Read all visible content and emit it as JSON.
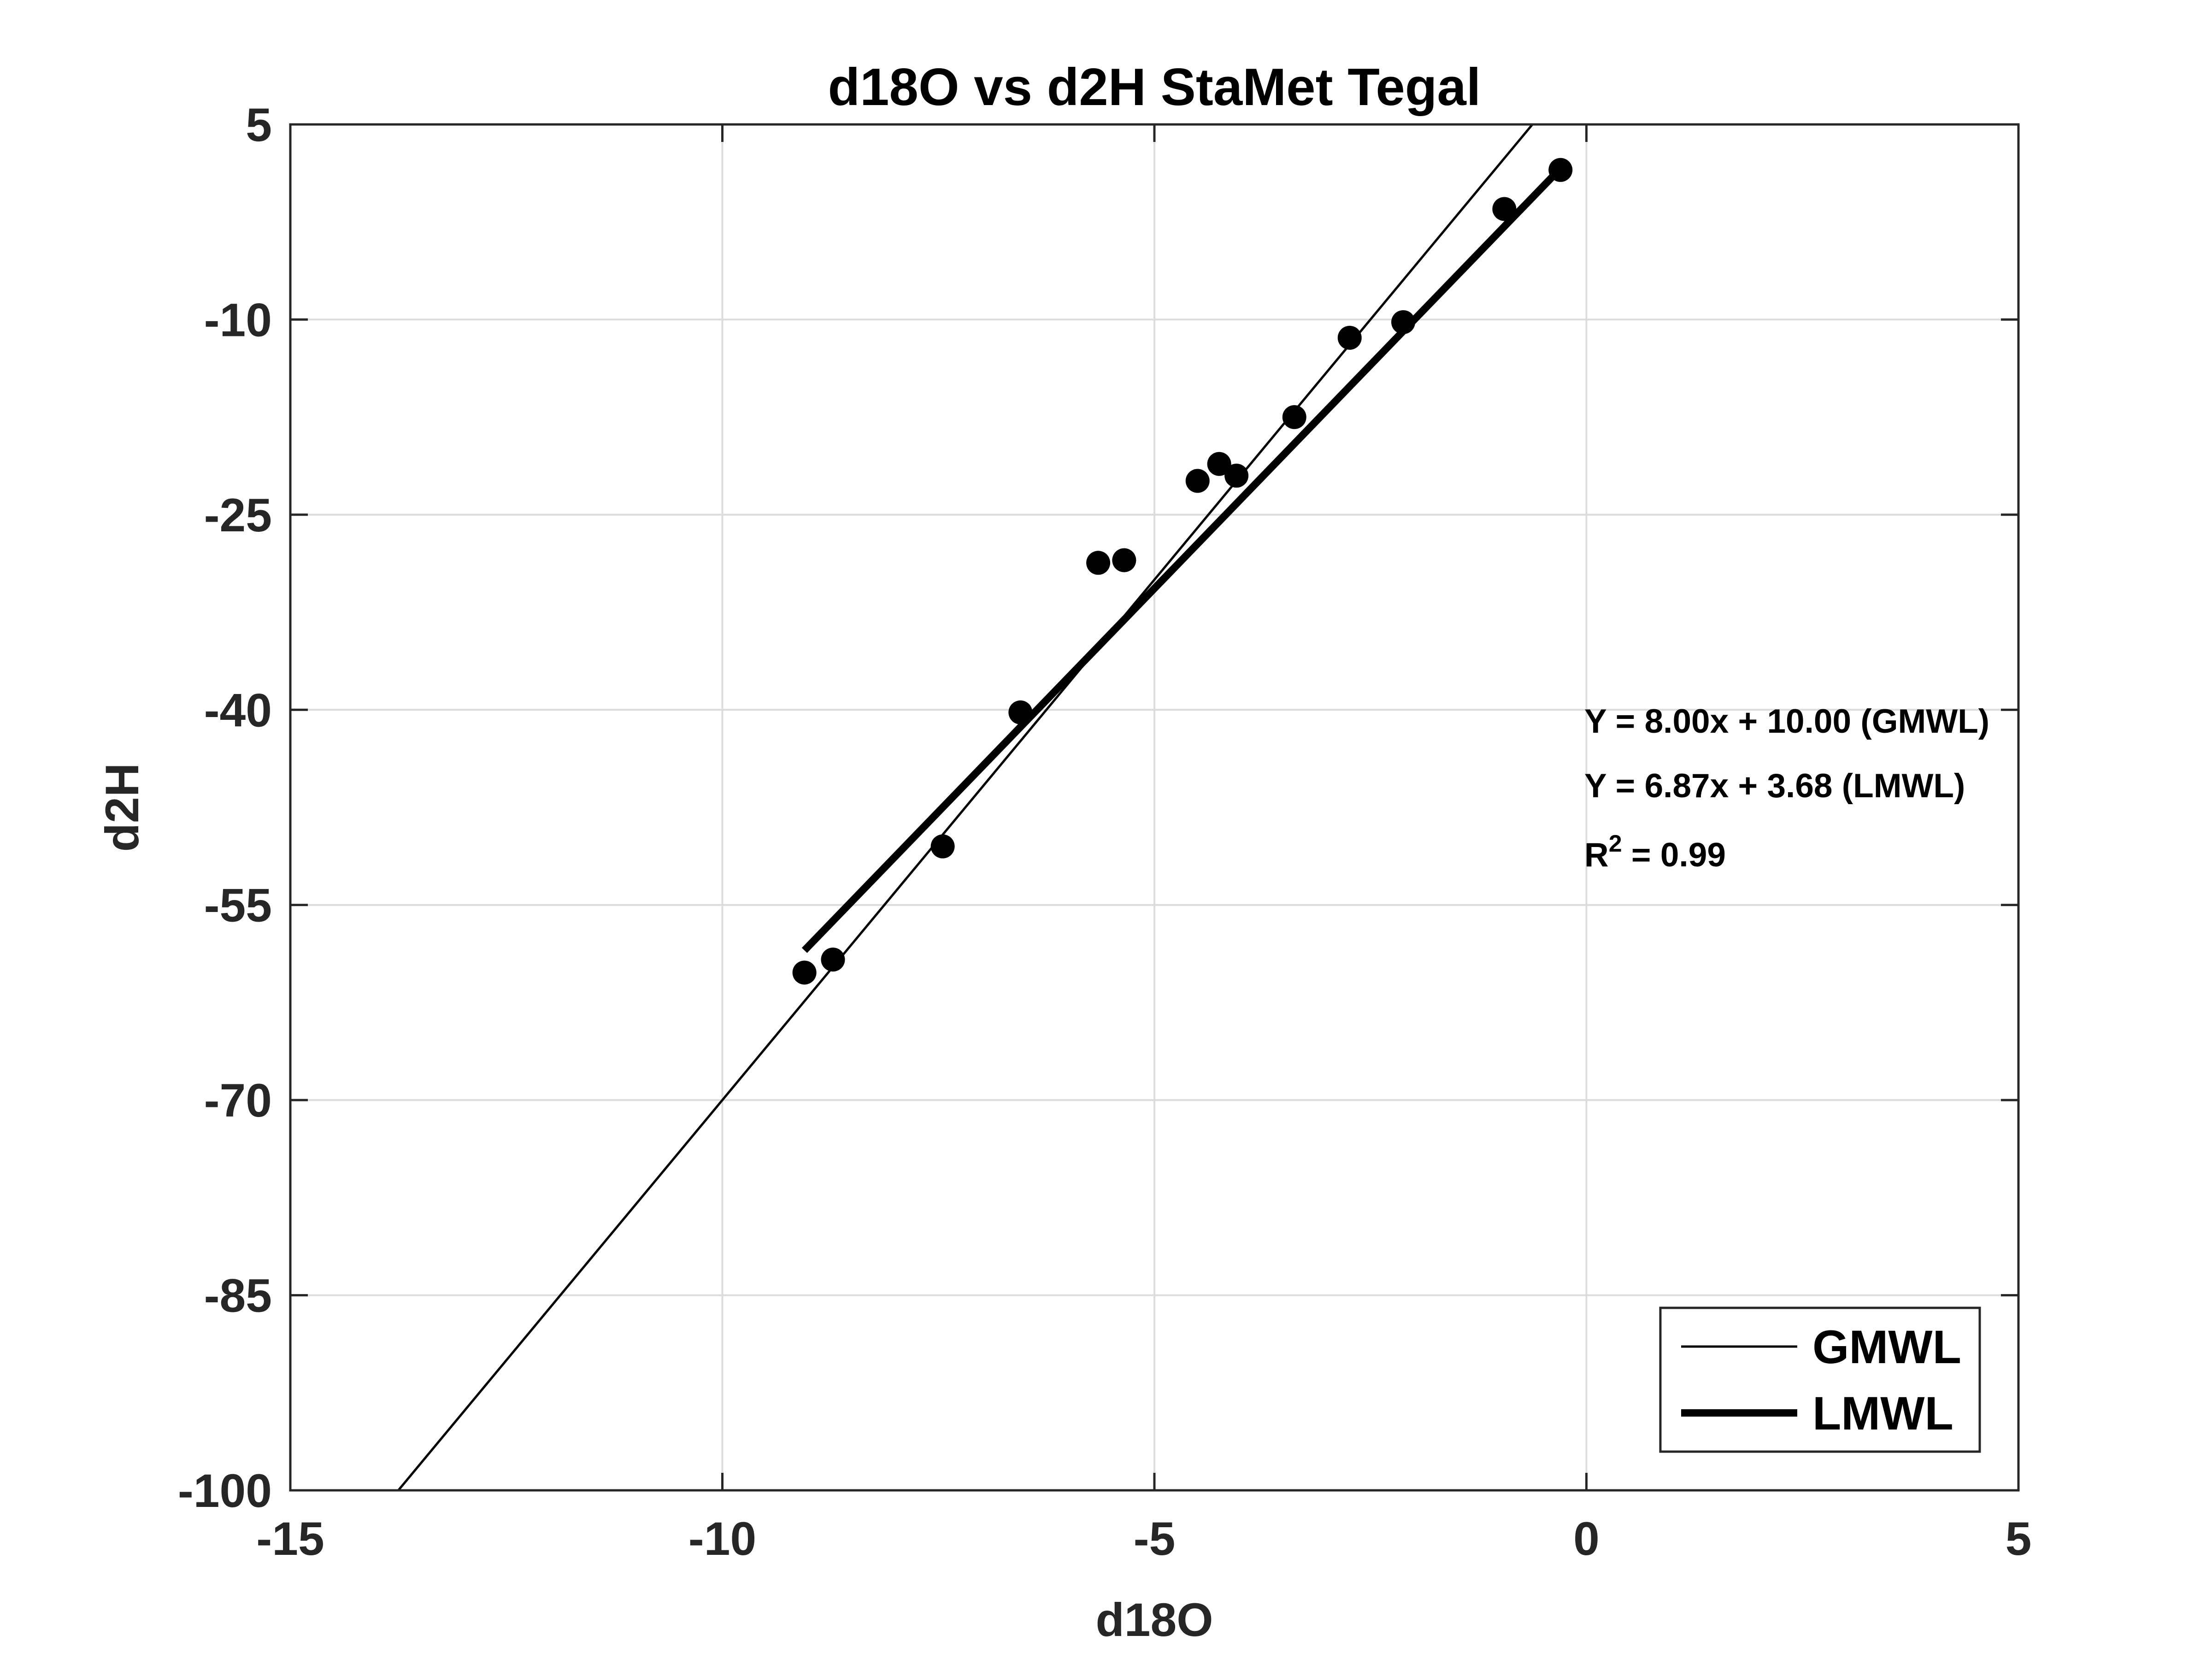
{
  "colors": {
    "background": "#ffffff",
    "axes": "#262626",
    "grid": "#dcdcdc",
    "series": "#000000"
  },
  "chart_data": {
    "type": "scatter",
    "title": "d18O vs d2H StaMet Tegal",
    "xlabel": "d18O",
    "ylabel": "d2H",
    "xlim": [
      -15,
      5
    ],
    "ylim": [
      -100,
      5
    ],
    "xticks": [
      -15,
      -10,
      -5,
      0,
      5
    ],
    "xtick_labels": [
      "-15",
      "-10",
      "-5",
      "0",
      "5"
    ],
    "yticks": [
      -100,
      -85,
      -70,
      -55,
      -40,
      -25,
      -10,
      5
    ],
    "ytick_labels": [
      "-100",
      "-85",
      "-70",
      "-55",
      "-40",
      "-25",
      "-10",
      "5"
    ],
    "grid": true,
    "points": {
      "x": [
        -9.05,
        -8.72,
        -7.45,
        -6.55,
        -5.65,
        -5.35,
        -4.5,
        -4.25,
        -4.05,
        -3.38,
        -2.74,
        -2.12,
        -0.95,
        -0.3
      ],
      "y": [
        -60.2,
        -59.2,
        -50.5,
        -40.2,
        -28.7,
        -28.5,
        -22.4,
        -21.1,
        -22.0,
        -17.5,
        -11.4,
        -10.2,
        -1.5,
        1.5
      ]
    },
    "lines": [
      {
        "name": "GMWL",
        "slope": 8.0,
        "intercept": 10.0,
        "x_range": [
          -13.75,
          -0.625
        ],
        "stroke": "thin"
      },
      {
        "name": "LMWL",
        "slope": 6.87,
        "intercept": 3.68,
        "x_range": [
          -9.05,
          -0.3
        ],
        "stroke": "thick"
      }
    ],
    "annotations": [
      {
        "text": "Y = 8.00x + 10.00 (GMWL)"
      },
      {
        "text": "Y = 6.87x + 3.68 (LMWL)"
      },
      {
        "text": "R",
        "superscript": "2",
        "suffix": " = 0.99"
      }
    ],
    "legend": {
      "position": "bottom-right",
      "entries": [
        "GMWL",
        "LMWL"
      ]
    }
  }
}
